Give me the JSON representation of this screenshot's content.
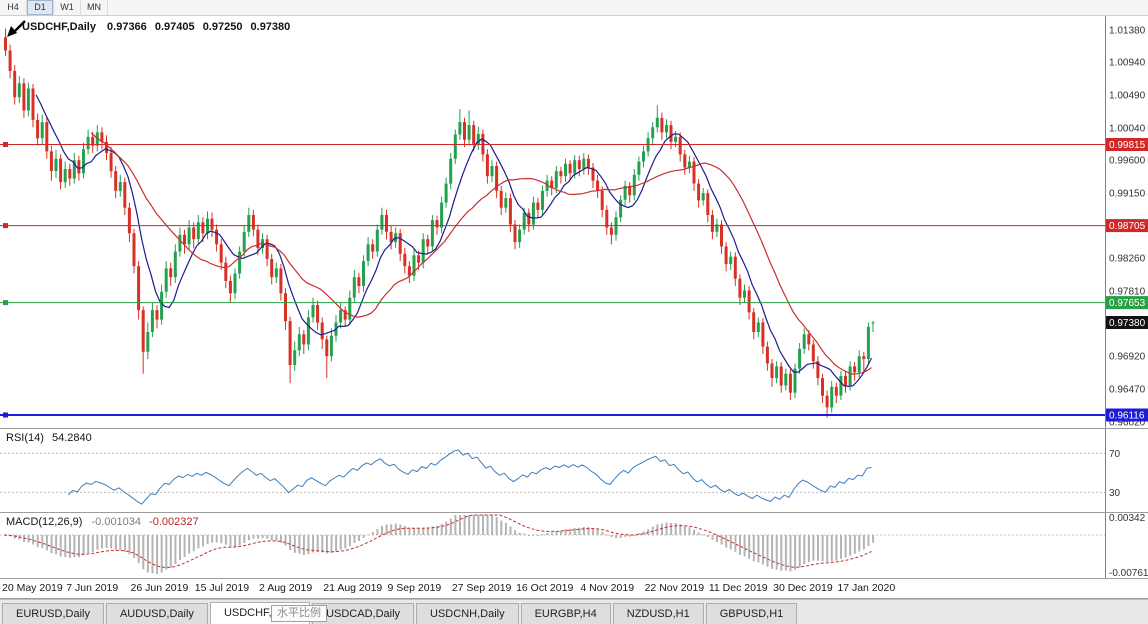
{
  "toolbar": {
    "timeframes": [
      {
        "label": "H4",
        "active": false
      },
      {
        "label": "D1",
        "active": true
      },
      {
        "label": "W1",
        "active": false
      },
      {
        "label": "MN",
        "active": false
      }
    ]
  },
  "chart": {
    "symbol_title": "USDCHF,Daily",
    "ohlc": {
      "open": "0.97366",
      "high": "0.97405",
      "low": "0.97250",
      "close": "0.97380"
    }
  },
  "chart_data": {
    "type": "candlestick",
    "symbol": "USDCHF",
    "timeframe": "Daily",
    "colors": {
      "bull": "#23a14f",
      "bear": "#d93026",
      "axis_text": "#333333",
      "current_label_bg": "#121212"
    },
    "ylim": [
      0.9602,
      1.0138
    ],
    "y_ticks": [
      "1.01380",
      "1.00940",
      "1.00490",
      "1.00040",
      "0.99600",
      "0.99150",
      "0.98260",
      "0.97810",
      "0.96920",
      "0.96470",
      "0.96020"
    ],
    "hlines": [
      {
        "price": 0.99815,
        "label": "0.99815",
        "color": "#d02828",
        "width": 1
      },
      {
        "price": 0.98705,
        "label": "0.98705",
        "color": "#d02828",
        "width": 1
      },
      {
        "price": 0.97653,
        "label": "0.97653",
        "color": "#28a046",
        "width": 1
      },
      {
        "price": 0.96116,
        "label": "0.96116",
        "color": "#1d1dd8",
        "width": 2
      }
    ],
    "current_price": {
      "value": 0.9738,
      "label": "0.97380"
    },
    "overlays": [
      {
        "name": "ma-fast",
        "period": 8,
        "color": "#1c1c8f"
      },
      {
        "name": "ma-slow",
        "period": 20,
        "color": "#cb2f2f"
      }
    ],
    "x_labels": [
      "20 May 2019",
      "7 Jun 2019",
      "26 Jun 2019",
      "15 Jul 2019",
      "2 Aug 2019",
      "21 Aug 2019",
      "9 Sep 2019",
      "27 Sep 2019",
      "16 Oct 2019",
      "4 Nov 2019",
      "22 Nov 2019",
      "11 Dec 2019",
      "30 Dec 2019",
      "17 Jan 2020"
    ],
    "x_label_every": 14,
    "indicators": [
      {
        "name": "RSI",
        "label": "RSI(14)",
        "value": "54.2840",
        "period": 14,
        "levels": [
          70,
          30
        ],
        "line_color": "#3c7ebe",
        "level_color": "#b8b8b8"
      },
      {
        "name": "MACD",
        "label": "MACD(12,26,9)",
        "value_main": "-0.001034",
        "value_signal": "-0.002327",
        "fast": 12,
        "slow": 26,
        "signal": 9,
        "y_axis": [
          "0.00342",
          "-0.00761"
        ],
        "histogram_color": "#b4b4b4",
        "signal_color": "#cc2b2b"
      }
    ],
    "candles": [
      [
        1.0128,
        1.014,
        1.0102,
        1.011
      ],
      [
        1.011,
        1.0118,
        1.0072,
        1.0082
      ],
      [
        1.0082,
        1.009,
        1.0036,
        1.0046
      ],
      [
        1.0046,
        1.0075,
        1.0038,
        1.0065
      ],
      [
        1.0065,
        1.0072,
        1.0018,
        1.0028
      ],
      [
        1.0028,
        1.0066,
        1.002,
        1.0058
      ],
      [
        1.0058,
        1.0064,
        1.0005,
        1.0015
      ],
      [
        1.0015,
        1.0024,
        0.998,
        0.999
      ],
      [
        0.999,
        1.0022,
        0.9982,
        1.0012
      ],
      [
        1.0012,
        1.0018,
        0.9962,
        0.9972
      ],
      [
        0.9972,
        0.998,
        0.9932,
        0.9945
      ],
      [
        0.9945,
        0.9974,
        0.9936,
        0.9962
      ],
      [
        0.9962,
        0.9968,
        0.992,
        0.993
      ],
      [
        0.993,
        0.9958,
        0.9922,
        0.9948
      ],
      [
        0.9948,
        0.9955,
        0.9925,
        0.9935
      ],
      [
        0.9935,
        0.997,
        0.9928,
        0.996
      ],
      [
        0.996,
        0.9966,
        0.9932,
        0.9942
      ],
      [
        0.9942,
        0.9984,
        0.9935,
        0.9975
      ],
      [
        0.9975,
        1.0002,
        0.9968,
        0.9992
      ],
      [
        0.9992,
        0.9999,
        0.997,
        0.998
      ],
      [
        0.998,
        1.0008,
        0.9972,
        0.9998
      ],
      [
        0.9998,
        1.0005,
        0.9975,
        0.9985
      ],
      [
        0.9985,
        0.9994,
        0.996,
        0.997
      ],
      [
        0.997,
        0.9978,
        0.9936,
        0.9945
      ],
      [
        0.9945,
        0.9952,
        0.9908,
        0.9918
      ],
      [
        0.9918,
        0.994,
        0.991,
        0.993
      ],
      [
        0.993,
        0.9936,
        0.9885,
        0.9895
      ],
      [
        0.9895,
        0.9902,
        0.9848,
        0.986
      ],
      [
        0.986,
        0.9866,
        0.9805,
        0.9815
      ],
      [
        0.9815,
        0.9822,
        0.9742,
        0.9755
      ],
      [
        0.9755,
        0.976,
        0.9668,
        0.9698
      ],
      [
        0.9698,
        0.9738,
        0.9688,
        0.9725
      ],
      [
        0.9725,
        0.9765,
        0.9718,
        0.9755
      ],
      [
        0.9755,
        0.9762,
        0.973,
        0.9742
      ],
      [
        0.9742,
        0.979,
        0.9735,
        0.978
      ],
      [
        0.978,
        0.9822,
        0.9772,
        0.9812
      ],
      [
        0.9812,
        0.982,
        0.9788,
        0.98
      ],
      [
        0.98,
        0.9845,
        0.9792,
        0.9835
      ],
      [
        0.9835,
        0.9868,
        0.9828,
        0.9858
      ],
      [
        0.9858,
        0.9865,
        0.9832,
        0.9845
      ],
      [
        0.9845,
        0.9878,
        0.9838,
        0.9868
      ],
      [
        0.9868,
        0.9875,
        0.984,
        0.9852
      ],
      [
        0.9852,
        0.9885,
        0.9845,
        0.9875
      ],
      [
        0.9875,
        0.9882,
        0.9848,
        0.986
      ],
      [
        0.986,
        0.989,
        0.9852,
        0.988
      ],
      [
        0.988,
        0.9888,
        0.9855,
        0.9865
      ],
      [
        0.9865,
        0.9872,
        0.9835,
        0.9845
      ],
      [
        0.9845,
        0.9852,
        0.981,
        0.982
      ],
      [
        0.982,
        0.9828,
        0.9785,
        0.9795
      ],
      [
        0.9795,
        0.9802,
        0.9765,
        0.9778
      ],
      [
        0.9778,
        0.9812,
        0.977,
        0.9805
      ],
      [
        0.9805,
        0.9842,
        0.9798,
        0.9835
      ],
      [
        0.9835,
        0.987,
        0.9828,
        0.9862
      ],
      [
        0.9862,
        0.9895,
        0.9855,
        0.9885
      ],
      [
        0.9885,
        0.9892,
        0.9856,
        0.9865
      ],
      [
        0.9865,
        0.9872,
        0.983,
        0.984
      ],
      [
        0.984,
        0.986,
        0.9832,
        0.9852
      ],
      [
        0.9852,
        0.9858,
        0.9815,
        0.9825
      ],
      [
        0.9825,
        0.9832,
        0.979,
        0.98
      ],
      [
        0.98,
        0.982,
        0.9792,
        0.9812
      ],
      [
        0.9812,
        0.9818,
        0.9768,
        0.9778
      ],
      [
        0.9778,
        0.9785,
        0.9728,
        0.974
      ],
      [
        0.974,
        0.9746,
        0.9655,
        0.968
      ],
      [
        0.968,
        0.9712,
        0.9672,
        0.97
      ],
      [
        0.97,
        0.9732,
        0.9692,
        0.9722
      ],
      [
        0.9722,
        0.9728,
        0.9695,
        0.9708
      ],
      [
        0.9708,
        0.9755,
        0.97,
        0.9745
      ],
      [
        0.9745,
        0.9772,
        0.9738,
        0.9762
      ],
      [
        0.9762,
        0.9768,
        0.9728,
        0.9738
      ],
      [
        0.9738,
        0.9745,
        0.9702,
        0.9715
      ],
      [
        0.9715,
        0.972,
        0.9662,
        0.9692
      ],
      [
        0.9692,
        0.973,
        0.9685,
        0.972
      ],
      [
        0.972,
        0.9748,
        0.9712,
        0.9738
      ],
      [
        0.9738,
        0.9765,
        0.973,
        0.9755
      ],
      [
        0.9755,
        0.976,
        0.9732,
        0.9742
      ],
      [
        0.9742,
        0.9782,
        0.9735,
        0.9772
      ],
      [
        0.9772,
        0.981,
        0.9765,
        0.98
      ],
      [
        0.98,
        0.9806,
        0.9778,
        0.9788
      ],
      [
        0.9788,
        0.983,
        0.978,
        0.9822
      ],
      [
        0.9822,
        0.9855,
        0.9815,
        0.9845
      ],
      [
        0.9845,
        0.9852,
        0.9825,
        0.9835
      ],
      [
        0.9835,
        0.9872,
        0.9828,
        0.9865
      ],
      [
        0.9865,
        0.9895,
        0.9858,
        0.9885
      ],
      [
        0.9885,
        0.9892,
        0.9852,
        0.9862
      ],
      [
        0.9862,
        0.987,
        0.9838,
        0.9848
      ],
      [
        0.9848,
        0.9868,
        0.984,
        0.986
      ],
      [
        0.986,
        0.9866,
        0.9822,
        0.9832
      ],
      [
        0.9832,
        0.984,
        0.9805,
        0.9815
      ],
      [
        0.9815,
        0.9822,
        0.9792,
        0.9802
      ],
      [
        0.9802,
        0.9838,
        0.9795,
        0.983
      ],
      [
        0.983,
        0.9836,
        0.981,
        0.982
      ],
      [
        0.982,
        0.986,
        0.9812,
        0.9852
      ],
      [
        0.9852,
        0.9858,
        0.9832,
        0.9842
      ],
      [
        0.9842,
        0.9885,
        0.9835,
        0.9878
      ],
      [
        0.9878,
        0.9884,
        0.9858,
        0.9868
      ],
      [
        0.9868,
        0.991,
        0.986,
        0.9902
      ],
      [
        0.9902,
        0.9936,
        0.9895,
        0.9928
      ],
      [
        0.9928,
        0.997,
        0.992,
        0.9962
      ],
      [
        0.9962,
        1.0002,
        0.9955,
        0.9995
      ],
      [
        0.9995,
        1.003,
        0.9988,
        1.0012
      ],
      [
        1.0012,
        1.0018,
        0.9978,
        0.9988
      ],
      [
        0.9988,
        1.0028,
        0.998,
        1.0008
      ],
      [
        1.0008,
        1.0014,
        0.9972,
        0.9982
      ],
      [
        0.9982,
        1.0006,
        0.9974,
        0.9996
      ],
      [
        0.9996,
        1.0002,
        0.9958,
        0.9968
      ],
      [
        0.9968,
        0.9975,
        0.9928,
        0.9938
      ],
      [
        0.9938,
        0.996,
        0.993,
        0.9952
      ],
      [
        0.9952,
        0.9958,
        0.9908,
        0.9918
      ],
      [
        0.9918,
        0.9925,
        0.9885,
        0.9895
      ],
      [
        0.9895,
        0.9916,
        0.9888,
        0.9908
      ],
      [
        0.9908,
        0.9914,
        0.9862,
        0.9872
      ],
      [
        0.9872,
        0.9878,
        0.9838,
        0.9848
      ],
      [
        0.9848,
        0.9872,
        0.984,
        0.9865
      ],
      [
        0.9865,
        0.9895,
        0.9858,
        0.9888
      ],
      [
        0.9888,
        0.9894,
        0.9862,
        0.9872
      ],
      [
        0.9872,
        0.991,
        0.9865,
        0.9902
      ],
      [
        0.9902,
        0.9908,
        0.9882,
        0.9892
      ],
      [
        0.9892,
        0.9925,
        0.9885,
        0.9918
      ],
      [
        0.9918,
        0.994,
        0.991,
        0.9932
      ],
      [
        0.9932,
        0.9938,
        0.9912,
        0.9922
      ],
      [
        0.9922,
        0.9952,
        0.9915,
        0.9945
      ],
      [
        0.9945,
        0.9951,
        0.9928,
        0.9938
      ],
      [
        0.9938,
        0.9962,
        0.993,
        0.9955
      ],
      [
        0.9955,
        0.996,
        0.9932,
        0.9942
      ],
      [
        0.9942,
        0.9967,
        0.9935,
        0.996
      ],
      [
        0.996,
        0.9966,
        0.9938,
        0.9948
      ],
      [
        0.9948,
        0.997,
        0.994,
        0.9962
      ],
      [
        0.9962,
        0.9968,
        0.994,
        0.995
      ],
      [
        0.995,
        0.9956,
        0.9922,
        0.9932
      ],
      [
        0.9932,
        0.994,
        0.9908,
        0.9918
      ],
      [
        0.9918,
        0.9924,
        0.9882,
        0.9892
      ],
      [
        0.9892,
        0.9898,
        0.9858,
        0.9868
      ],
      [
        0.9868,
        0.9875,
        0.9845,
        0.9858
      ],
      [
        0.9858,
        0.989,
        0.985,
        0.9882
      ],
      [
        0.9882,
        0.9912,
        0.9875,
        0.9906
      ],
      [
        0.9906,
        0.9932,
        0.9898,
        0.9925
      ],
      [
        0.9925,
        0.993,
        0.9902,
        0.9912
      ],
      [
        0.9912,
        0.9948,
        0.9905,
        0.994
      ],
      [
        0.994,
        0.9965,
        0.9932,
        0.9958
      ],
      [
        0.9958,
        0.998,
        0.995,
        0.9972
      ],
      [
        0.9972,
        0.9998,
        0.9965,
        0.999
      ],
      [
        0.999,
        1.0012,
        0.9982,
        1.0005
      ],
      [
        1.0005,
        1.0035,
        0.9998,
        1.0018
      ],
      [
        1.0018,
        1.0025,
        0.9988,
        0.9998
      ],
      [
        0.9998,
        1.0016,
        0.999,
        1.0008
      ],
      [
        1.0008,
        1.0014,
        0.9975,
        0.9985
      ],
      [
        0.9985,
        1.0,
        0.9978,
        0.9992
      ],
      [
        0.9992,
        0.9998,
        0.9958,
        0.9968
      ],
      [
        0.9968,
        0.9974,
        0.994,
        0.995
      ],
      [
        0.995,
        0.9966,
        0.9942,
        0.9958
      ],
      [
        0.9958,
        0.9964,
        0.9918,
        0.9928
      ],
      [
        0.9928,
        0.9934,
        0.9895,
        0.9905
      ],
      [
        0.9905,
        0.9922,
        0.9898,
        0.9915
      ],
      [
        0.9915,
        0.992,
        0.9875,
        0.9885
      ],
      [
        0.9885,
        0.9892,
        0.9852,
        0.9862
      ],
      [
        0.9862,
        0.988,
        0.9855,
        0.9872
      ],
      [
        0.9872,
        0.9878,
        0.9832,
        0.9842
      ],
      [
        0.9842,
        0.9848,
        0.9808,
        0.9818
      ],
      [
        0.9818,
        0.9835,
        0.981,
        0.9828
      ],
      [
        0.9828,
        0.9834,
        0.9788,
        0.9798
      ],
      [
        0.9798,
        0.9804,
        0.9762,
        0.9772
      ],
      [
        0.9772,
        0.979,
        0.9765,
        0.9782
      ],
      [
        0.9782,
        0.9788,
        0.9742,
        0.9752
      ],
      [
        0.9752,
        0.9758,
        0.9715,
        0.9725
      ],
      [
        0.9725,
        0.9745,
        0.9718,
        0.9738
      ],
      [
        0.9738,
        0.9744,
        0.9695,
        0.9705
      ],
      [
        0.9705,
        0.9712,
        0.9672,
        0.9682
      ],
      [
        0.9682,
        0.9688,
        0.965,
        0.9662
      ],
      [
        0.9662,
        0.9685,
        0.9655,
        0.9678
      ],
      [
        0.9678,
        0.9684,
        0.9642,
        0.9652
      ],
      [
        0.9652,
        0.9675,
        0.9645,
        0.9668
      ],
      [
        0.9668,
        0.9674,
        0.9632,
        0.9642
      ],
      [
        0.9642,
        0.9682,
        0.9635,
        0.9675
      ],
      [
        0.9675,
        0.971,
        0.9668,
        0.9702
      ],
      [
        0.9702,
        0.973,
        0.9695,
        0.9722
      ],
      [
        0.9722,
        0.9728,
        0.97,
        0.9708
      ],
      [
        0.9708,
        0.9714,
        0.9675,
        0.9685
      ],
      [
        0.9685,
        0.9692,
        0.9652,
        0.9662
      ],
      [
        0.9662,
        0.9668,
        0.9628,
        0.9638
      ],
      [
        0.9638,
        0.9645,
        0.9608,
        0.9622
      ],
      [
        0.9622,
        0.9658,
        0.9615,
        0.965
      ],
      [
        0.965,
        0.9656,
        0.9628,
        0.9638
      ],
      [
        0.9638,
        0.9672,
        0.9632,
        0.9665
      ],
      [
        0.9665,
        0.9671,
        0.9642,
        0.9652
      ],
      [
        0.9652,
        0.9685,
        0.9645,
        0.9678
      ],
      [
        0.9678,
        0.9684,
        0.9658,
        0.967
      ],
      [
        0.967,
        0.97,
        0.9662,
        0.9692
      ],
      [
        0.9692,
        0.9698,
        0.9668,
        0.9688
      ],
      [
        0.9688,
        0.9738,
        0.9682,
        0.9732
      ],
      [
        0.97366,
        0.97405,
        0.9725,
        0.9738
      ]
    ]
  },
  "tabs": [
    {
      "label": "EURUSD,Daily",
      "active": false
    },
    {
      "label": "AUDUSD,Daily",
      "active": false
    },
    {
      "label": "USDCHF,Daily",
      "active": true
    },
    {
      "label": "USDCAD,Daily",
      "active": false
    },
    {
      "label": "USDCNH,Daily",
      "active": false
    },
    {
      "label": "EURGBP,H4",
      "active": false
    },
    {
      "label": "NZDUSD,H1",
      "active": false
    },
    {
      "label": "GBPUSD,H1",
      "active": false
    }
  ],
  "tooltip": {
    "text": "水平比例"
  }
}
